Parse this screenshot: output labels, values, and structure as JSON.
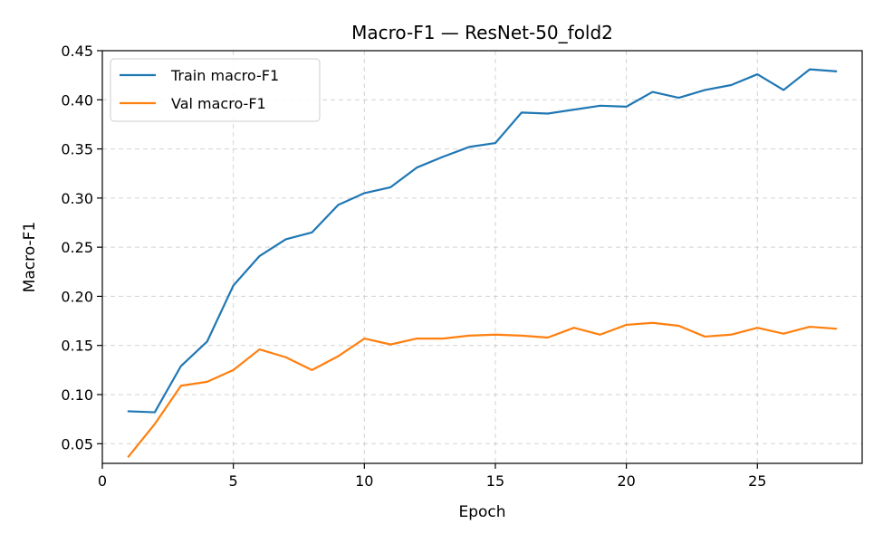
{
  "chart_data": {
    "type": "line",
    "title": "Macro-F1 — ResNet-50_fold2",
    "xlabel": "Epoch",
    "ylabel": "Macro-F1",
    "xlim": [
      0,
      29
    ],
    "ylim": [
      0.03,
      0.45
    ],
    "xticks": [
      0,
      5,
      10,
      15,
      20,
      25
    ],
    "xtick_labels": [
      "0",
      "5",
      "10",
      "15",
      "20",
      "25"
    ],
    "yticks": [
      0.05,
      0.1,
      0.15,
      0.2,
      0.25,
      0.3,
      0.35,
      0.4,
      0.45
    ],
    "ytick_labels": [
      "0.05",
      "0.10",
      "0.15",
      "0.20",
      "0.25",
      "0.30",
      "0.35",
      "0.40",
      "0.45"
    ],
    "grid": true,
    "legend_position": "top-left",
    "x": [
      1,
      2,
      3,
      4,
      5,
      6,
      7,
      8,
      9,
      10,
      11,
      12,
      13,
      14,
      15,
      16,
      17,
      18,
      19,
      20,
      21,
      22,
      23,
      24,
      25,
      26,
      27,
      28
    ],
    "series": [
      {
        "name": "Train macro-F1",
        "color": "#1f77b4",
        "values": [
          0.083,
          0.082,
          0.129,
          0.154,
          0.211,
          0.241,
          0.258,
          0.265,
          0.293,
          0.305,
          0.311,
          0.331,
          0.342,
          0.352,
          0.356,
          0.387,
          0.386,
          0.39,
          0.394,
          0.393,
          0.408,
          0.402,
          0.41,
          0.415,
          0.426,
          0.41,
          0.431,
          0.429
        ]
      },
      {
        "name": "Val macro-F1",
        "color": "#ff7f0e",
        "values": [
          0.037,
          0.07,
          0.109,
          0.113,
          0.125,
          0.146,
          0.138,
          0.125,
          0.139,
          0.157,
          0.151,
          0.157,
          0.157,
          0.16,
          0.161,
          0.16,
          0.158,
          0.168,
          0.161,
          0.171,
          0.173,
          0.17,
          0.159,
          0.161,
          0.168,
          0.162,
          0.169,
          0.167
        ]
      }
    ]
  }
}
